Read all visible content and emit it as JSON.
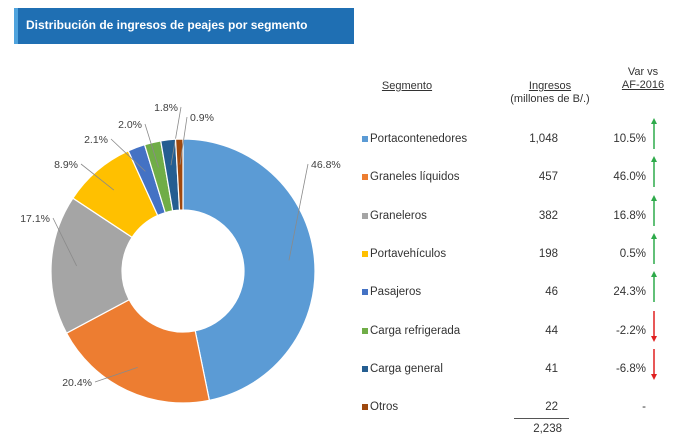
{
  "header": {
    "title": "Distribución de ingresos de peajes por segmento"
  },
  "table": {
    "col_segment": "Segmento",
    "col_ingresos_1": "Ingresos",
    "col_ingresos_2": "(millones de B/.)",
    "col_var_1": "Var vs",
    "col_var_2": "AF-2016",
    "rows": [
      {
        "segment": "Portacontenedores",
        "ingresos": "1,048",
        "var": "10.5%",
        "trend": "up",
        "color": "#5b9bd5"
      },
      {
        "segment": "Graneles líquidos",
        "ingresos": "457",
        "var": "46.0%",
        "trend": "up",
        "color": "#ed7d31"
      },
      {
        "segment": "Graneleros",
        "ingresos": "382",
        "var": "16.8%",
        "trend": "up",
        "color": "#a5a5a5"
      },
      {
        "segment": "Portavehículos",
        "ingresos": "198",
        "var": "0.5%",
        "trend": "up",
        "color": "#ffc000"
      },
      {
        "segment": "Pasajeros",
        "ingresos": "46",
        "var": "24.3%",
        "trend": "up",
        "color": "#4472c4"
      },
      {
        "segment": "Carga refrigerada",
        "ingresos": "44",
        "var": "-2.2%",
        "trend": "down",
        "color": "#70ad47"
      },
      {
        "segment": "Carga general",
        "ingresos": "41",
        "var": "-6.8%",
        "trend": "down",
        "color": "#255e91"
      },
      {
        "segment": "Otros",
        "ingresos": "22",
        "var": "-",
        "trend": "none",
        "color": "#9e480e"
      }
    ],
    "total": "2,238"
  },
  "chart_data": {
    "type": "pie",
    "donut": true,
    "categories": [
      "Portacontenedores",
      "Graneles líquidos",
      "Graneleros",
      "Portavehículos",
      "Pasajeros",
      "Carga refrigerada",
      "Carga general",
      "Otros"
    ],
    "values": [
      46.8,
      20.4,
      17.1,
      8.9,
      2.1,
      2.0,
      1.8,
      0.9
    ],
    "labels": [
      "46.8%",
      "20.4%",
      "17.1%",
      "8.9%",
      "2.1%",
      "2.0%",
      "1.8%",
      "0.9%"
    ],
    "colors": [
      "#5b9bd5",
      "#ed7d31",
      "#a5a5a5",
      "#ffc000",
      "#4472c4",
      "#70ad47",
      "#255e91",
      "#9e480e"
    ],
    "arrow_up_color": "#2eaa4a",
    "arrow_down_color": "#e02020"
  }
}
